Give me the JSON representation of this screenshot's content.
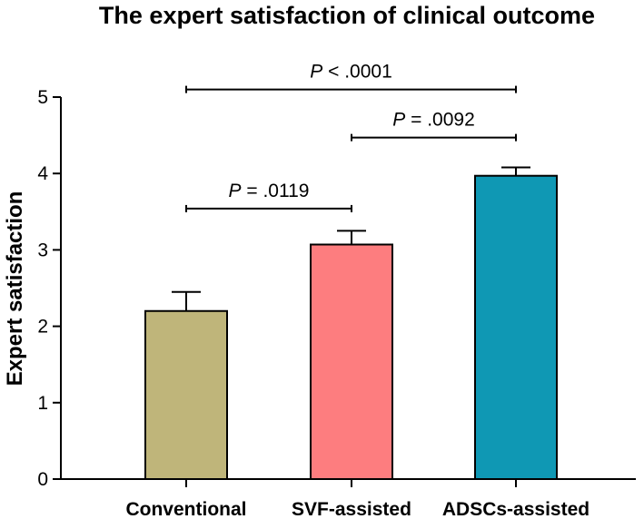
{
  "chart_data": {
    "type": "bar",
    "title": "The expert satisfaction of clinical outcome",
    "xlabel": "",
    "ylabel": "Expert satisfaction",
    "ylim": [
      0,
      5
    ],
    "yticks": [
      "0",
      "1",
      "2",
      "3",
      "4",
      "5"
    ],
    "categories": [
      "Conventional",
      "SVF-assisted",
      "ADSCs-assisted"
    ],
    "values": [
      2.2,
      3.07,
      3.97
    ],
    "errors": [
      0.25,
      0.18,
      0.11
    ],
    "colors": [
      "#bfb57a",
      "#fd7d7f",
      "#0f98b4"
    ],
    "comparisons": [
      {
        "from": 0,
        "to": 1,
        "y": 3.54,
        "p_symbol": "P",
        "p_text": " = .0119"
      },
      {
        "from": 1,
        "to": 2,
        "y": 4.47,
        "p_symbol": "P",
        "p_text": " = .0092"
      },
      {
        "from": 0,
        "to": 2,
        "y": 5.1,
        "p_symbol": "P",
        "p_text": " < .0001"
      }
    ]
  }
}
